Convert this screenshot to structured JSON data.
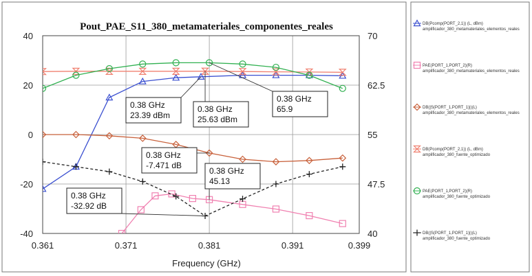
{
  "chart_data": {
    "type": "line",
    "title": "Pout_PAE_S11_380_metamateriales_componentes_reales",
    "xlabel": "Frequency (GHz)",
    "xlim": [
      0.361,
      0.399
    ],
    "x_ticks": [
      "0.361",
      "0.371",
      "0.381",
      "0.391",
      "0.399"
    ],
    "y_left": {
      "lim": [
        -40,
        40
      ],
      "ticks": [
        "40",
        "20",
        "0",
        "-20",
        "-40"
      ]
    },
    "y_right": {
      "lim": [
        40,
        70
      ],
      "ticks": [
        "70",
        "62.5",
        "55",
        "47.5",
        "40"
      ]
    },
    "grid": true,
    "legend_placement": "right",
    "series": [
      {
        "name": "DB(Pcomp(PORT_2,1)) (L, dBm)",
        "sub": "amplificador_380_metamateriales_elementos_reales",
        "axis": "left",
        "color": "#3a4fd0",
        "marker": "triangle",
        "x": [
          0.361,
          0.365,
          0.369,
          0.373,
          0.377,
          0.38,
          0.385,
          0.389,
          0.393,
          0.397
        ],
        "y": [
          -22,
          -13,
          15,
          21.5,
          23,
          23.39,
          24,
          24,
          24,
          23.8
        ]
      },
      {
        "name": "PAE(PORT_1,PORT_2)(R)",
        "sub": "amplificador_380_metamateriales_elementos_reales",
        "axis": "right",
        "color": "#f080b0",
        "marker": "square",
        "x": [
          0.3705,
          0.3728,
          0.3745,
          0.3765,
          0.379,
          0.381,
          0.385,
          0.389,
          0.393,
          0.397
        ],
        "y": [
          40,
          43.6,
          45.7,
          46,
          45.3,
          45.13,
          44.4,
          43.7,
          42.7,
          41.5
        ]
      },
      {
        "name": "DB(|S(PORT_1,PORT_1)|)(L)",
        "sub": "amplificador_380_metamateriales_elementos_reales",
        "axis": "left",
        "color": "#c8603a",
        "marker": "diamond",
        "x": [
          0.361,
          0.365,
          0.369,
          0.373,
          0.377,
          0.381,
          0.385,
          0.389,
          0.393,
          0.397
        ],
        "y": [
          0,
          0,
          -0.5,
          -1.5,
          -4,
          -7.471,
          -10,
          -11,
          -10.5,
          -9.5
        ]
      },
      {
        "name": "DB(Pcomp(PORT_2,1)) (L, dBm)",
        "sub": "amplificador_380_fuente_optimizado",
        "axis": "left",
        "color": "#f08070",
        "marker": "hourglass",
        "x": [
          0.361,
          0.365,
          0.369,
          0.373,
          0.377,
          0.3805,
          0.385,
          0.389,
          0.393,
          0.397
        ],
        "y": [
          25.5,
          25.6,
          25.6,
          25.6,
          25.6,
          25.63,
          25.5,
          25.4,
          25.3,
          25.2
        ]
      },
      {
        "name": "PAE(PORT_1,PORT_2)(R)",
        "sub": "amplificador_380_fuente_optimizado",
        "axis": "right",
        "color": "#30b050",
        "marker": "circle",
        "x": [
          0.361,
          0.365,
          0.369,
          0.373,
          0.377,
          0.381,
          0.385,
          0.389,
          0.393,
          0.397
        ],
        "y": [
          62,
          64,
          65,
          65.7,
          65.9,
          65.9,
          65.7,
          65.2,
          64,
          62
        ]
      },
      {
        "name": "DB(|S(PORT_1,PORT_1)|)(L)",
        "sub": "amplificador_380_fuente_optimizado",
        "axis": "left",
        "color": "#222222",
        "marker": "plus",
        "x": [
          0.361,
          0.365,
          0.369,
          0.373,
          0.377,
          0.3805,
          0.385,
          0.389,
          0.393,
          0.397
        ],
        "y": [
          -11,
          -13,
          -15,
          -19,
          -25,
          -32.92,
          -26,
          -20,
          -16,
          -13
        ]
      }
    ],
    "annotations": [
      {
        "lines": [
          "0.38 GHz",
          "23.39 dBm"
        ],
        "series": 0,
        "x": 0.38,
        "y": 23.39
      },
      {
        "lines": [
          "0.38 GHz",
          "25.63 dBm"
        ],
        "series": 3,
        "x": 0.3805,
        "y": 25.63
      },
      {
        "lines": [
          "0.38 GHz",
          "65.9"
        ],
        "series": 4,
        "x": 0.381,
        "y": 65.9
      },
      {
        "lines": [
          "0.38 GHz",
          "-7.471 dB"
        ],
        "series": 2,
        "x": 0.381,
        "y": -7.471
      },
      {
        "lines": [
          "0.38 GHz",
          "45.13"
        ],
        "series": 1,
        "x": 0.381,
        "y": 45.13
      },
      {
        "lines": [
          "0.38 GHz",
          "-32.92 dB"
        ],
        "series": 5,
        "x": 0.3805,
        "y": -32.92
      }
    ]
  }
}
